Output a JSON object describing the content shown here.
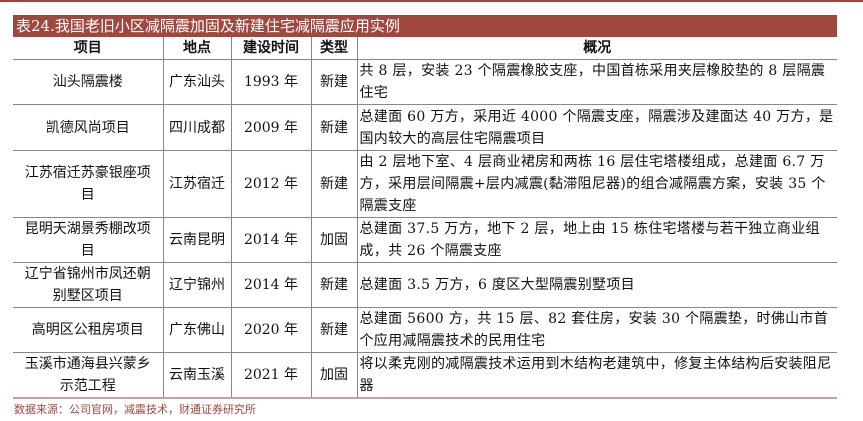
{
  "title": "表24.我国老旧小区减隔震加固及新建住宅减隔震应用实例",
  "columns": [
    "项目",
    "地点",
    "建设时间",
    "类型",
    "概况"
  ],
  "rows": [
    {
      "project": "汕头隔震楼",
      "location": "广东汕头",
      "year": "1993 年",
      "type": "新建",
      "summary": "共 8 层，安装 23 个隔震橡胶支座，中国首栋采用夹层橡胶垫的 8 层隔震住宅"
    },
    {
      "project": "凯德风尚项目",
      "location": "四川成都",
      "year": "2009 年",
      "type": "新建",
      "summary": "总建面 60 万方，采用近 4000 个隔震支座，隔震涉及建面达 40 万方，是国内较大的高层住宅隔震项目"
    },
    {
      "project": "江苏宿迁苏豪银座项目",
      "location": "江苏宿迁",
      "year": "2012 年",
      "type": "新建",
      "summary": "由 2 层地下室、4 层商业裙房和两栋 16 层住宅塔楼组成，总建面 6.7 万方，采用层间隔震+层内减震(黏滞阻尼器)的组合减隔震方案，安装 35 个隔震支座"
    },
    {
      "project": "昆明天湖景秀棚改项目",
      "location": "云南昆明",
      "year": "2014 年",
      "type": "加固",
      "summary": "总建面 37.5 万方，地下 2 层，地上由 15 栋住宅塔楼与若干独立商业组成，共 26 个隔震支座"
    },
    {
      "project": "辽宁省锦州市凤还朝别墅区项目",
      "location": "辽宁锦州",
      "year": "2014 年",
      "type": "新建",
      "summary": "总建面 3.5 万方，6 度区大型隔震别墅项目"
    },
    {
      "project": "高明区公租房项目",
      "location": "广东佛山",
      "year": "2020 年",
      "type": "新建",
      "summary": "总建面 5600 方，共 15 层、82 套住房，安装 30 个隔震垫，时佛山市首个应用减隔震技术的民用住宅"
    },
    {
      "project": "玉溪市通海县兴蒙乡示范工程",
      "location": "云南玉溪",
      "year": "2021 年",
      "type": "加固",
      "summary": "将以柔克刚的减隔震技术运用到木结构老建筑中，修复主体结构后安装阻尼器"
    }
  ],
  "source": "数据来源：公司官网，减震技术，财通证券研究所",
  "colors": {
    "accent": "#a0483f"
  }
}
